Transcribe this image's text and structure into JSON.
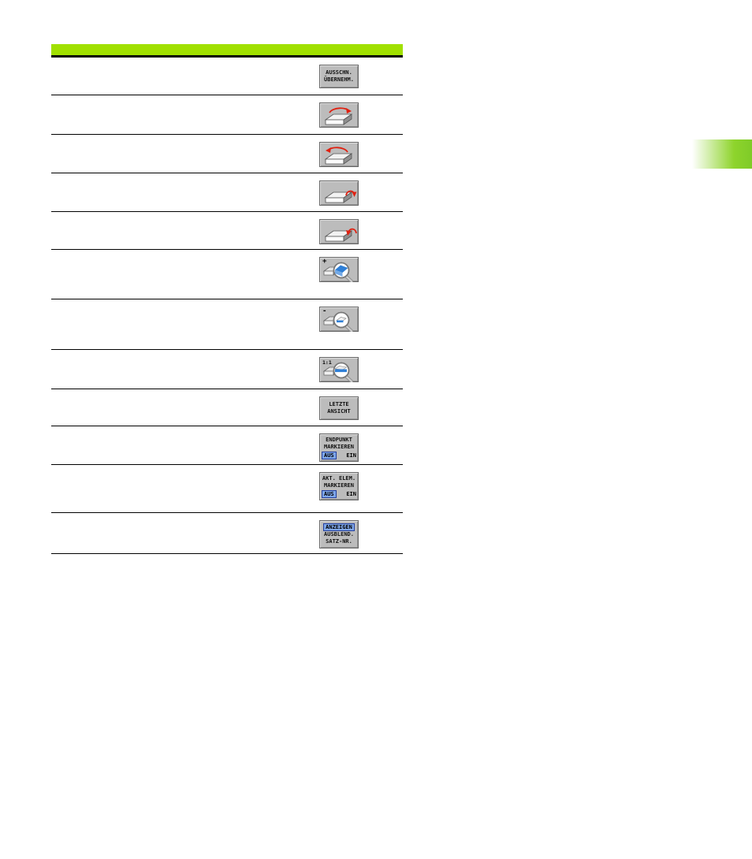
{
  "page": {
    "background": "#ffffff",
    "accent_green": "#a0e000",
    "tab_green": "#7fcb28",
    "softkey_gray": "#bcbcbc",
    "state_blue": "#7ea6e8",
    "arrow_red": "#e02010"
  },
  "table": {
    "header": {
      "title": ""
    },
    "rows": [
      {
        "softkey": {
          "kind": "text",
          "name": "softkey-ausschnitt-uebernehmen",
          "lines": [
            "AUSSCHN.",
            "ÜBERNEHM."
          ]
        }
      },
      {
        "softkey": {
          "kind": "icon",
          "name": "softkey-rotate-ccw",
          "icon": "box-rotate-ccw-icon"
        }
      },
      {
        "softkey": {
          "kind": "icon",
          "name": "softkey-rotate-cw",
          "icon": "box-rotate-cw-icon"
        }
      },
      {
        "softkey": {
          "kind": "icon",
          "name": "softkey-tilt-forward",
          "icon": "box-tilt-forward-icon"
        }
      },
      {
        "softkey": {
          "kind": "icon",
          "name": "softkey-tilt-backward",
          "icon": "box-tilt-backward-icon"
        }
      },
      {
        "softkey": {
          "kind": "icon",
          "name": "softkey-zoom-in",
          "icon": "magnify-plus-icon",
          "badge": "+"
        }
      },
      {
        "softkey": {
          "kind": "icon",
          "name": "softkey-zoom-out",
          "icon": "magnify-minus-icon",
          "badge": "-"
        }
      },
      {
        "softkey": {
          "kind": "icon",
          "name": "softkey-zoom-1to1",
          "icon": "magnify-1to1-icon",
          "badge": "1:1"
        }
      },
      {
        "softkey": {
          "kind": "text",
          "name": "softkey-letzte-ansicht",
          "lines": [
            "LETZTE",
            "ANSICHT"
          ]
        }
      },
      {
        "softkey": {
          "kind": "toggle",
          "name": "softkey-endpunkt-markieren",
          "lines": [
            "ENDPUNKT",
            "MARKIEREN"
          ],
          "state_active": "AUS",
          "state_inactive": "EIN"
        }
      },
      {
        "softkey": {
          "kind": "toggle",
          "name": "softkey-akt-elem-markieren",
          "lines": [
            "AKT. ELEM.",
            "MARKIEREN"
          ],
          "state_active": "AUS",
          "state_inactive": "EIN"
        }
      },
      {
        "softkey": {
          "kind": "toggle-top",
          "name": "softkey-anzeigen-ausblend-satznr",
          "state_active": "ANZEIGEN",
          "lines": [
            "AUSBLEND.",
            "SATZ-NR."
          ]
        }
      }
    ]
  },
  "side_tab": {
    "label": ""
  }
}
